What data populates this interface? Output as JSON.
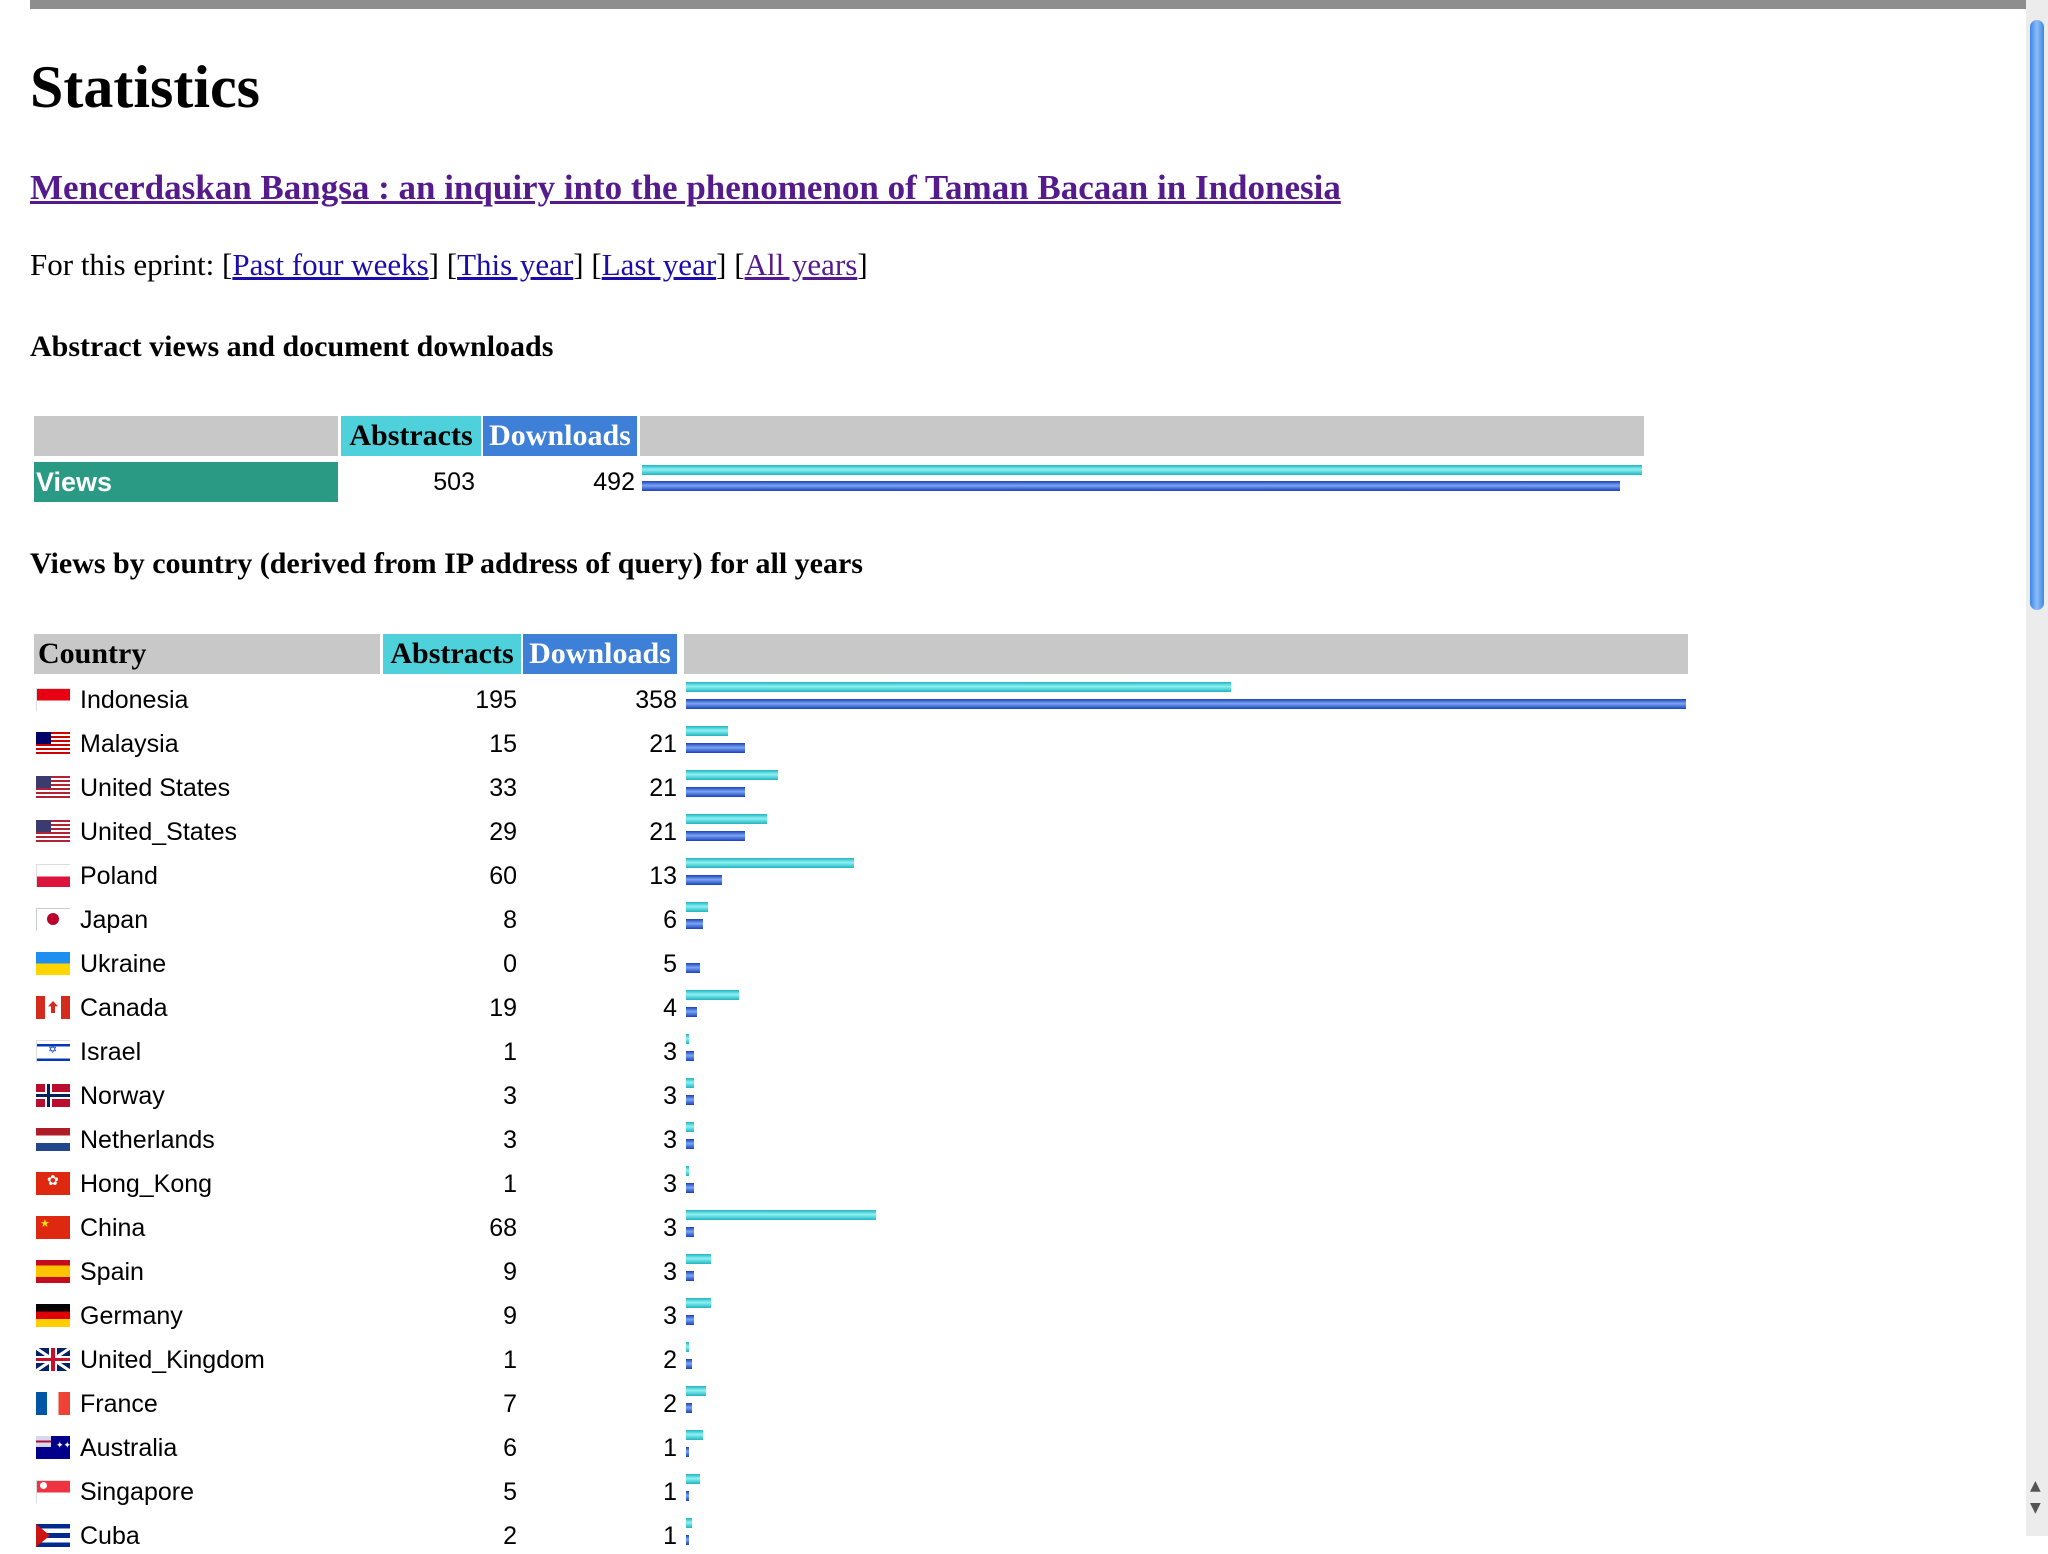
{
  "page": {
    "title": "Statistics",
    "eprint_title": "Mencerdaskan Bangsa : an inquiry into the phenomenon of Taman Bacaan in Indonesia",
    "nav": {
      "prefix": "For this eprint:",
      "links": [
        "Past four weeks",
        "This year",
        "Last year",
        "All years"
      ]
    }
  },
  "summary": {
    "heading": "Abstract views and document downloads",
    "col_abstracts": "Abstracts",
    "col_downloads": "Downloads",
    "row_label": "Views",
    "abstracts": 503,
    "downloads": 492,
    "scale_max": 503
  },
  "by_country": {
    "heading": "Views by country (derived from IP address of query) for all years",
    "col_country": "Country",
    "col_abstracts": "Abstracts",
    "col_downloads": "Downloads",
    "scale_max": 358,
    "rows": [
      {
        "name": "Indonesia",
        "flag": "id-flag",
        "abstracts": 195,
        "downloads": 358
      },
      {
        "name": "Malaysia",
        "flag": "my-flag",
        "abstracts": 15,
        "downloads": 21
      },
      {
        "name": "United States",
        "flag": "us-flag",
        "abstracts": 33,
        "downloads": 21
      },
      {
        "name": "United_States",
        "flag": "us-flag",
        "abstracts": 29,
        "downloads": 21
      },
      {
        "name": "Poland",
        "flag": "pl-flag",
        "abstracts": 60,
        "downloads": 13
      },
      {
        "name": "Japan",
        "flag": "jp-flag",
        "abstracts": 8,
        "downloads": 6
      },
      {
        "name": "Ukraine",
        "flag": "ua-flag",
        "abstracts": 0,
        "downloads": 5
      },
      {
        "name": "Canada",
        "flag": "ca-flag",
        "abstracts": 19,
        "downloads": 4
      },
      {
        "name": "Israel",
        "flag": "il-flag",
        "abstracts": 1,
        "downloads": 3
      },
      {
        "name": "Norway",
        "flag": "no-flag",
        "abstracts": 3,
        "downloads": 3
      },
      {
        "name": "Netherlands",
        "flag": "nl-flag",
        "abstracts": 3,
        "downloads": 3
      },
      {
        "name": "Hong_Kong",
        "flag": "hk-flag",
        "abstracts": 1,
        "downloads": 3
      },
      {
        "name": "China",
        "flag": "cn-flag",
        "abstracts": 68,
        "downloads": 3
      },
      {
        "name": "Spain",
        "flag": "es-flag",
        "abstracts": 9,
        "downloads": 3
      },
      {
        "name": "Germany",
        "flag": "de-flag",
        "abstracts": 9,
        "downloads": 3
      },
      {
        "name": "United_Kingdom",
        "flag": "gb-flag",
        "abstracts": 1,
        "downloads": 2
      },
      {
        "name": "France",
        "flag": "fr-flag",
        "abstracts": 7,
        "downloads": 2
      },
      {
        "name": "Australia",
        "flag": "au-flag",
        "abstracts": 6,
        "downloads": 1
      },
      {
        "name": "Singapore",
        "flag": "sg-flag",
        "abstracts": 5,
        "downloads": 1
      },
      {
        "name": "Cuba",
        "flag": "cu-flag",
        "abstracts": 2,
        "downloads": 1
      }
    ]
  },
  "colors": {
    "abstracts": "#4fd1dc",
    "downloads": "#3e7fd8",
    "views_label": "#2a9a84",
    "header_gray": "#c8c8c8"
  }
}
